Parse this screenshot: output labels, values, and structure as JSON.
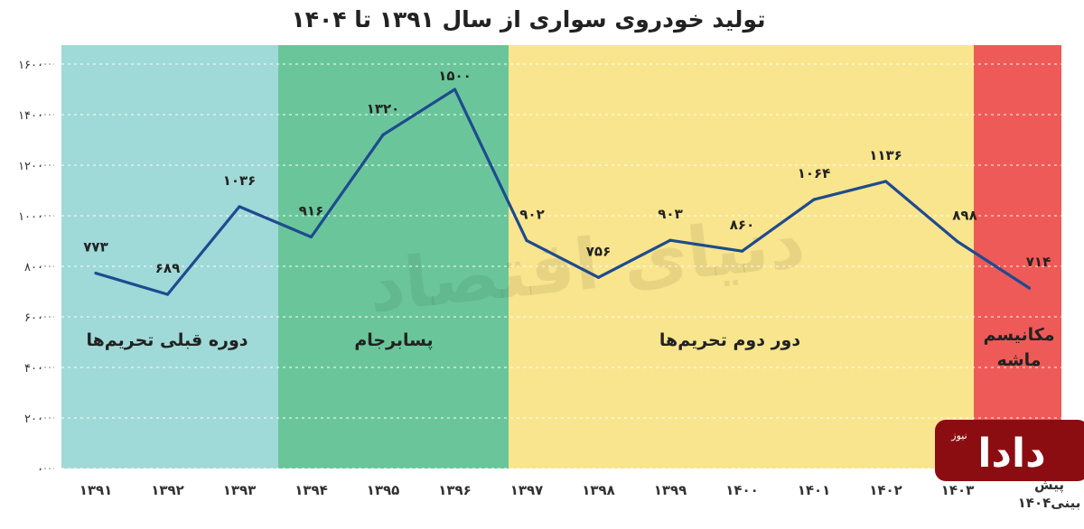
{
  "title": "تولید خودروی سواری از سال ۱۳۹۱ تا ۱۴۰۴",
  "logo": {
    "main": "دادا",
    "small": "نیوز",
    "bg": "#8b0d12"
  },
  "watermark": "دنیای اقتصاد",
  "regions": [
    {
      "label": "دوره قبلی تحریم‌ها",
      "color": "#9fd9d8",
      "from": 1391,
      "to": 1393
    },
    {
      "label": "پسابرجام",
      "color": "#6ac69a",
      "from": 1394,
      "to": 1396
    },
    {
      "label": "دور دوم تحریم‌ها",
      "color": "#f9e58d",
      "from": 1397,
      "to": 1402
    },
    {
      "label": "مکانیسم ماشه",
      "color": "#ee5a57",
      "from": 1403,
      "to": 1404
    }
  ],
  "chart_data": {
    "type": "line",
    "title": "تولید خودروی سواری از سال ۱۳۹۱ تا ۱۴۰۴",
    "categories": [
      "۱۳۹۱",
      "۱۳۹۲",
      "۱۳۹۳",
      "۱۳۹۴",
      "۱۳۹۵",
      "۱۳۹۶",
      "۱۳۹۷",
      "۱۳۹۸",
      "۱۳۹۹",
      "۱۴۰۰",
      "۱۴۰۱",
      "۱۴۰۲",
      "۱۴۰۳",
      "پیش بینی۱۴۰۴"
    ],
    "values": [
      773,
      689,
      1036,
      916,
      1320,
      1500,
      902,
      756,
      903,
      860,
      1064,
      1136,
      898,
      714
    ],
    "value_labels": [
      "۷۷۳",
      "۶۸۹",
      "۱۰۳۶",
      "۹۱۶",
      "۱۳۲۰",
      "۱۵۰۰",
      "۹۰۲",
      "۷۵۶",
      "۹۰۳",
      "۸۶۰",
      "۱۰۶۴",
      "۱۱۳۶",
      "۸۹۸",
      "۷۱۴"
    ],
    "yticks": [
      0,
      200,
      400,
      600,
      800,
      1000,
      1200,
      1400,
      1600
    ],
    "ytick_labels": [
      "۰",
      "۲۰۰",
      "۴۰۰",
      "۶۰۰",
      "۸۰۰",
      "۱۰۰۰",
      "۱۲۰۰",
      "۱۴۰۰",
      "۱۶۰۰"
    ],
    "ylim": [
      0,
      1600
    ],
    "line_color": "#1e4b8f",
    "grid": "horizontal-dashed",
    "xlabel": "",
    "ylabel": ""
  }
}
